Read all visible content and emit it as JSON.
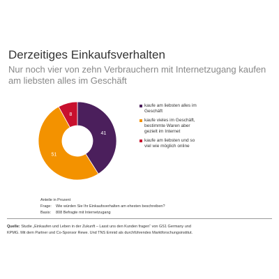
{
  "chart_data": {
    "type": "donut",
    "title": "Derzeitiges Einkaufsverhalten",
    "subtitle": "Nur noch vier von zehn Verbrauchern mit Internetzugang kaufen am liebsten alles im Geschäft",
    "categories": [
      "kaufe am liebsten alles im Geschäft",
      "kaufe vieles im Geschäft, bestimmte Waren aber gezielt im Internet",
      "kaufe am liebsten und so viel wie möglich online"
    ],
    "values": [
      41,
      51,
      8
    ],
    "colors": [
      "#4b1f5c",
      "#f39200",
      "#c8102e"
    ]
  },
  "footnotes": {
    "unit": "Anteile in Prozent",
    "question_label": "Frage:",
    "question": "Wie würden Sie Ihr Einkaufsverhalten am ehesten beschreiben?",
    "basis_label": "Basis:",
    "basis": "808 Befragte mit Internetzugang"
  },
  "source": {
    "label": "Quelle:",
    "text": "Studie „Einkaufen und Leben in der Zukunft – Lasst uns den Kunden fragen“ von GS1 Germany und KPMG. Mit dem Partner und Co-Sponsor Rewe. Und TNS Emnid als durchführendes Marktforschungsinstitut."
  }
}
